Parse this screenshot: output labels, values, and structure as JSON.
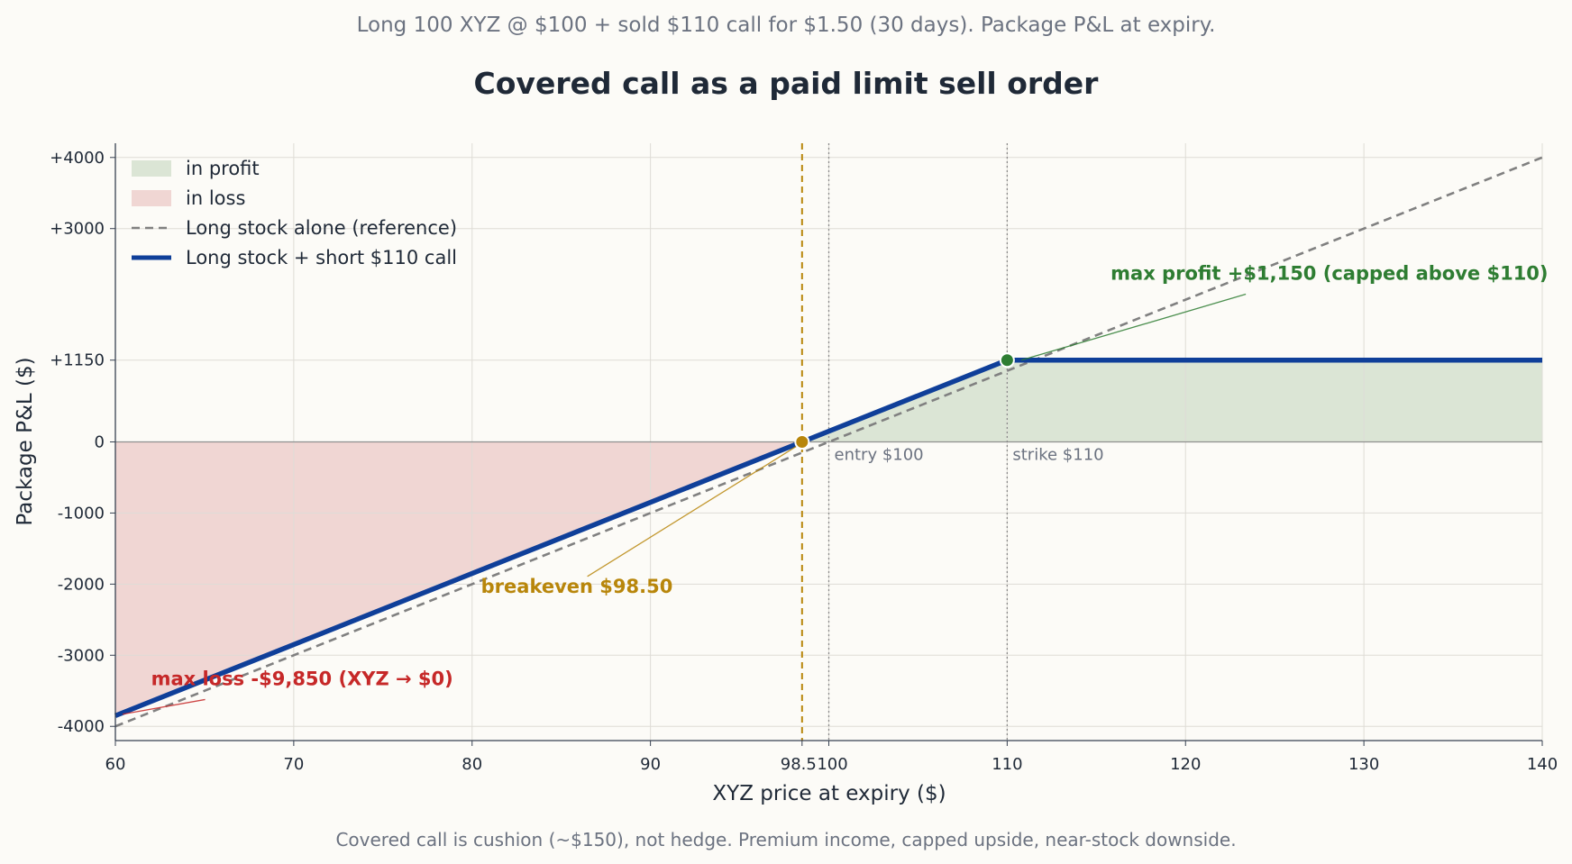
{
  "subtitle": "Long 100 XYZ @ $100 + sold $110 call for $1.50 (30 days). Package P&L at expiry.",
  "title": "Covered call as a paid limit sell order",
  "footer": "Covered call is cushion (~$150), not hedge. Premium income, capped upside, near-stock downside.",
  "chart_data": {
    "type": "line",
    "xlabel": "XYZ price at expiry ($)",
    "ylabel": "Package P&L ($)",
    "xlim": [
      60,
      140
    ],
    "ylim": [
      -4200,
      4200
    ],
    "x_ticks": [
      60,
      70,
      80,
      90,
      98.5,
      100,
      110,
      120,
      130,
      140
    ],
    "x_tick_labels": [
      "60",
      "70",
      "80",
      "90",
      "98.5",
      "100",
      "110",
      "120",
      "130",
      "140"
    ],
    "y_ticks": [
      -4000,
      -3000,
      -2000,
      -1000,
      0,
      1150,
      3000,
      4000
    ],
    "y_tick_labels": [
      "-4000",
      "-3000",
      "-2000",
      "-1000",
      "0",
      "+1150",
      "+3000",
      "+4000"
    ],
    "grid": true,
    "legend_position": "top-left",
    "legend": [
      {
        "label": "in profit",
        "kind": "patch",
        "color": "#dbe5d5"
      },
      {
        "label": "in loss",
        "kind": "patch",
        "color": "#f0d6d3"
      },
      {
        "label": "Long stock alone (reference)",
        "kind": "dashed",
        "color": "#808080"
      },
      {
        "label": "Long stock + short $110 call",
        "kind": "line",
        "color": "#0f3f99"
      }
    ],
    "series": [
      {
        "name": "Long stock alone (reference)",
        "style": "dashed",
        "color": "#808080",
        "x": [
          60,
          140
        ],
        "y": [
          -4000,
          4000
        ]
      },
      {
        "name": "Long stock + short $110 call",
        "style": "solid",
        "color": "#0f3f99",
        "x": [
          60,
          110,
          140
        ],
        "y": [
          -3850,
          1150,
          1150
        ]
      }
    ],
    "fill_regions": {
      "profit_color": "#dbe5d5",
      "loss_color": "#f0d6d3"
    },
    "reference_lines": [
      {
        "x": 98.5,
        "label": "",
        "color": "#b8860b",
        "style": "dashed"
      },
      {
        "x": 100,
        "label": "entry $100",
        "color": "#8c8c8c",
        "style": "dotted"
      },
      {
        "x": 110,
        "label": "strike $110",
        "color": "#8c8c8c",
        "style": "dotted"
      }
    ],
    "markers": [
      {
        "name": "breakeven",
        "x": 98.5,
        "y": 0,
        "color": "#b8860b"
      },
      {
        "name": "max-profit",
        "x": 110,
        "y": 1150,
        "color": "#2e7d32"
      }
    ],
    "annotations": [
      {
        "name": "max-profit",
        "text": "max profit +$1,150 (capped above $110)",
        "color": "#2e7d32",
        "text_x": 115.8,
        "text_y": 2280,
        "point_x": 110.8,
        "point_y": 1150
      },
      {
        "name": "breakeven",
        "text": "breakeven $98.50",
        "color": "#b8860b",
        "text_x": 80.5,
        "text_y": -2120,
        "point_x": 98.2,
        "point_y": -60
      },
      {
        "name": "max-loss",
        "text": "max loss -$9,850 (XYZ → $0)",
        "color": "#c62828",
        "text_x": 62,
        "text_y": -3420,
        "point_x": 60.4,
        "point_y": -3830
      }
    ]
  }
}
